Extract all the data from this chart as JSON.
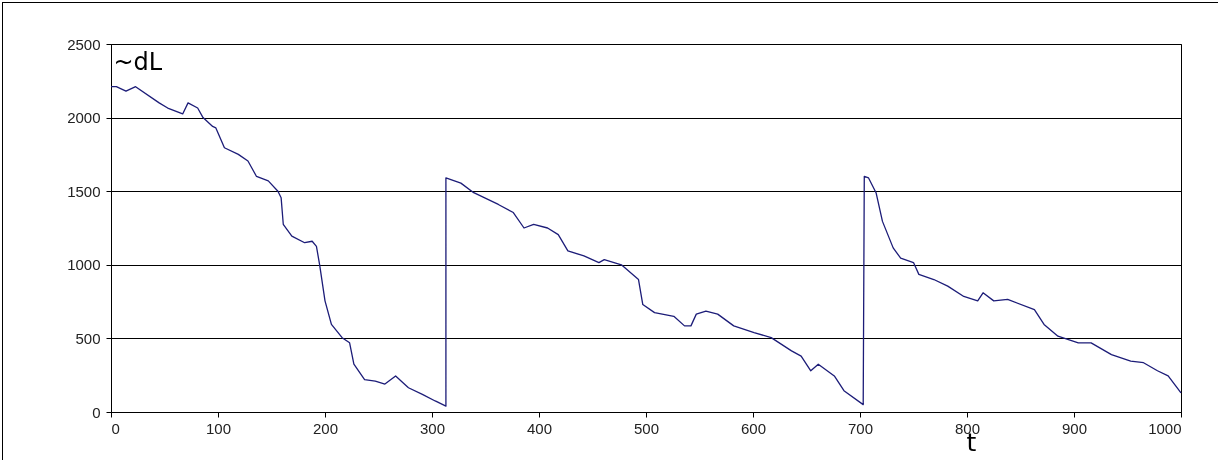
{
  "chart_data": {
    "type": "line",
    "xlabel": "t",
    "ylabel": "~dL",
    "x": [
      0,
      5,
      14,
      23,
      45,
      53,
      67,
      72,
      81,
      86,
      95,
      98,
      106,
      119,
      128,
      136,
      147,
      156,
      159,
      161,
      169,
      181,
      188,
      192,
      195,
      200,
      206,
      216,
      223,
      227,
      237,
      247,
      256,
      266,
      278,
      291,
      303,
      313,
      313,
      327,
      339,
      362,
      376,
      386,
      395,
      408,
      418,
      427,
      442,
      456,
      461,
      477,
      493,
      497,
      508,
      526,
      536,
      542,
      547,
      556,
      567,
      582,
      601,
      617,
      636,
      645,
      654,
      661,
      676,
      685,
      703,
      704,
      708,
      715,
      721,
      731,
      738,
      750,
      755,
      769,
      782,
      797,
      810,
      815,
      825,
      838,
      863,
      872,
      885,
      904,
      916,
      935,
      953,
      965,
      978,
      988,
      1000
    ],
    "series": [
      {
        "color": "#1c1c78",
        "values": [
          2210,
          2210,
          2180,
          2210,
          2100,
          2065,
          2025,
          2100,
          2065,
          2000,
          1940,
          1930,
          1795,
          1750,
          1705,
          1600,
          1570,
          1500,
          1455,
          1275,
          1195,
          1150,
          1160,
          1125,
          1000,
          755,
          595,
          505,
          470,
          325,
          220,
          210,
          190,
          245,
          165,
          120,
          75,
          40,
          1590,
          1555,
          1490,
          1410,
          1355,
          1250,
          1275,
          1250,
          1205,
          1095,
          1060,
          1015,
          1035,
          1000,
          900,
          730,
          675,
          650,
          585,
          585,
          665,
          685,
          665,
          585,
          540,
          505,
          415,
          380,
          280,
          325,
          245,
          145,
          50,
          1600,
          1590,
          1490,
          1295,
          1115,
          1045,
          1015,
          935,
          900,
          855,
          785,
          755,
          810,
          755,
          765,
          695,
          595,
          515,
          470,
          470,
          390,
          345,
          335,
          280,
          245,
          130
        ]
      }
    ],
    "xlim": [
      0,
      1000
    ],
    "xticks": [
      0,
      100,
      200,
      300,
      400,
      500,
      600,
      700,
      800,
      900,
      1000
    ],
    "ylim": [
      0,
      2500
    ],
    "yticks": [
      0,
      500,
      1000,
      1500,
      2000,
      2500
    ],
    "grid": "y"
  }
}
